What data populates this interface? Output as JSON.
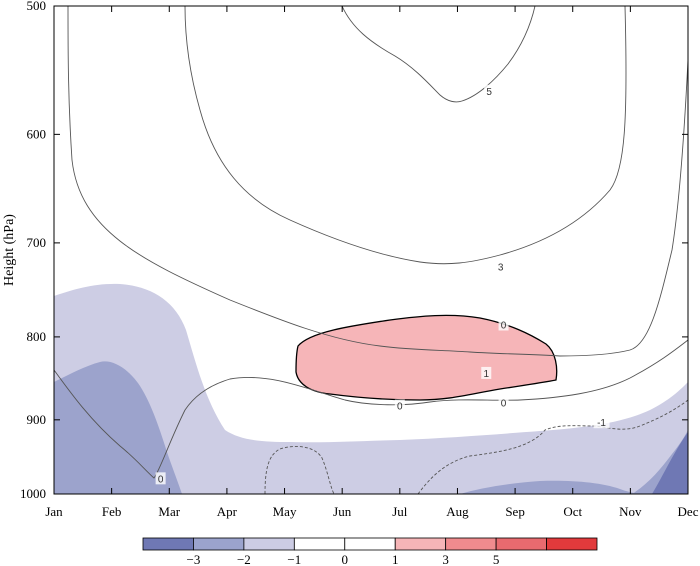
{
  "chart_data": {
    "type": "contour",
    "title": "",
    "xlabel": "",
    "ylabel": "Height (hPa)",
    "x_ticks": [
      "Jan",
      "Feb",
      "Mar",
      "Apr",
      "May",
      "Jun",
      "Jul",
      "Aug",
      "Sep",
      "Oct",
      "Nov",
      "Dec"
    ],
    "y_ticks": [
      "500",
      "600",
      "700",
      "800",
      "900",
      "1000"
    ],
    "y_tick_values": [
      500,
      600,
      700,
      800,
      900,
      1000
    ],
    "ylim": [
      1000,
      500
    ],
    "y_scale": "log-pressure",
    "contour_labels": [
      {
        "text": "5",
        "month": 7.55,
        "pressure": 564
      },
      {
        "text": "3",
        "month": 7.75,
        "pressure": 724
      },
      {
        "text": "0",
        "month": 7.8,
        "pressure": 786
      },
      {
        "text": "1",
        "month": 7.5,
        "pressure": 842
      },
      {
        "text": "0",
        "month": 7.8,
        "pressure": 878
      },
      {
        "text": "0",
        "month": 6.0,
        "pressure": 882
      },
      {
        "text": "-1",
        "month": 9.5,
        "pressure": 903
      },
      {
        "text": "0",
        "month": 1.85,
        "pressure": 978
      }
    ],
    "colorbar": {
      "labels": [
        "−3",
        "−2",
        "−1",
        "0",
        "1",
        "3",
        "5"
      ],
      "colors": [
        "#6f78b4",
        "#9ba3cd",
        "#ccccE4",
        "#ffffff",
        "#ffffff",
        "#f6b5b7",
        "#f08b8e",
        "#e86a6f",
        "#e23a3c"
      ]
    }
  }
}
